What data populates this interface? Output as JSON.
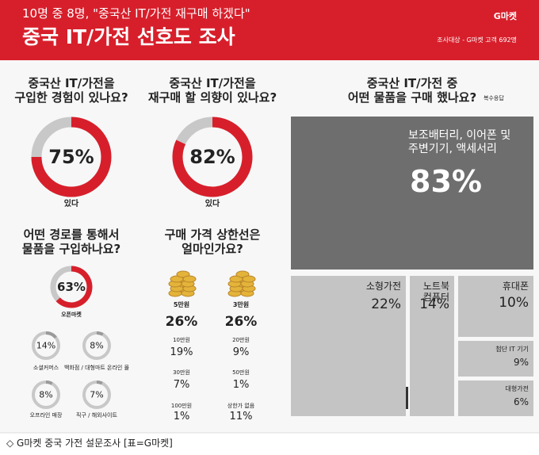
{
  "header": {
    "headline": "10명 중 8명, \"중국산 IT/가전 재구매 하겠다\"",
    "title": "중국 IT/가전 선호도 조사",
    "brand": "G마켓",
    "note": "조사대상 - G마켓 고객 692명"
  },
  "footer": "◇ G마켓 중국 가전 설문조사 [표=G마켓]",
  "chart_data": [
    {
      "type": "donut",
      "title": "중국산 IT/가전을\n구입한 경험이 있나요?",
      "categories": [
        "있다"
      ],
      "values": [
        75
      ],
      "value_labels": [
        "75%"
      ],
      "colors": [
        "#d71f2b"
      ]
    },
    {
      "type": "donut",
      "title": "중국산 IT/가전을\n재구매 할 의향이 있나요?",
      "categories": [
        "있다"
      ],
      "values": [
        82
      ],
      "value_labels": [
        "82%"
      ],
      "colors": [
        "#d71f2b"
      ]
    },
    {
      "type": "treemap",
      "title": "중국산 IT/가전 중\n어떤 물품을 구매 했나요?",
      "subtitle": "복수응답",
      "categories": [
        "보조배터리, 이어폰 및\n주변기기, 액세서리",
        "소형가전",
        "노트북\n컴퓨터",
        "휴대폰",
        "첨단 IT 기기",
        "대형가전"
      ],
      "values": [
        83,
        22,
        14,
        10,
        9,
        6
      ],
      "value_labels": [
        "83%",
        "22%",
        "14%",
        "10%",
        "9%",
        "6%"
      ],
      "colors": [
        "#6e6e6e",
        "#c4c4c4",
        "#c4c4c4",
        "#c4c4c4",
        "#c4c4c4",
        "#c4c4c4"
      ]
    },
    {
      "type": "donut",
      "title": "어떤 경로를 통해서\n물품을 구입하나요?",
      "categories": [
        "오픈마켓",
        "소셜커머스",
        "백화점 / 대형마트 온라인 몰",
        "오프라인 매장",
        "직구 / 해외사이트"
      ],
      "values": [
        63,
        14,
        8,
        8,
        7
      ],
      "value_labels": [
        "63%",
        "14%",
        "8%",
        "8%",
        "7%"
      ],
      "colors": [
        "#d71f2b",
        "#9a9a9a",
        "#9a9a9a",
        "#9a9a9a",
        "#9a9a9a"
      ]
    },
    {
      "type": "list",
      "title": "구매 가격 상한선은\n얼마인가요?",
      "categories": [
        "5만원",
        "3만원",
        "10만원",
        "20만원",
        "30만원",
        "50만원",
        "100만원",
        "상한가 없음"
      ],
      "values": [
        26,
        26,
        19,
        9,
        7,
        1,
        1,
        11
      ],
      "value_labels": [
        "26%",
        "26%",
        "19%",
        "9%",
        "7%",
        "1%",
        "1%",
        "11%"
      ]
    }
  ]
}
